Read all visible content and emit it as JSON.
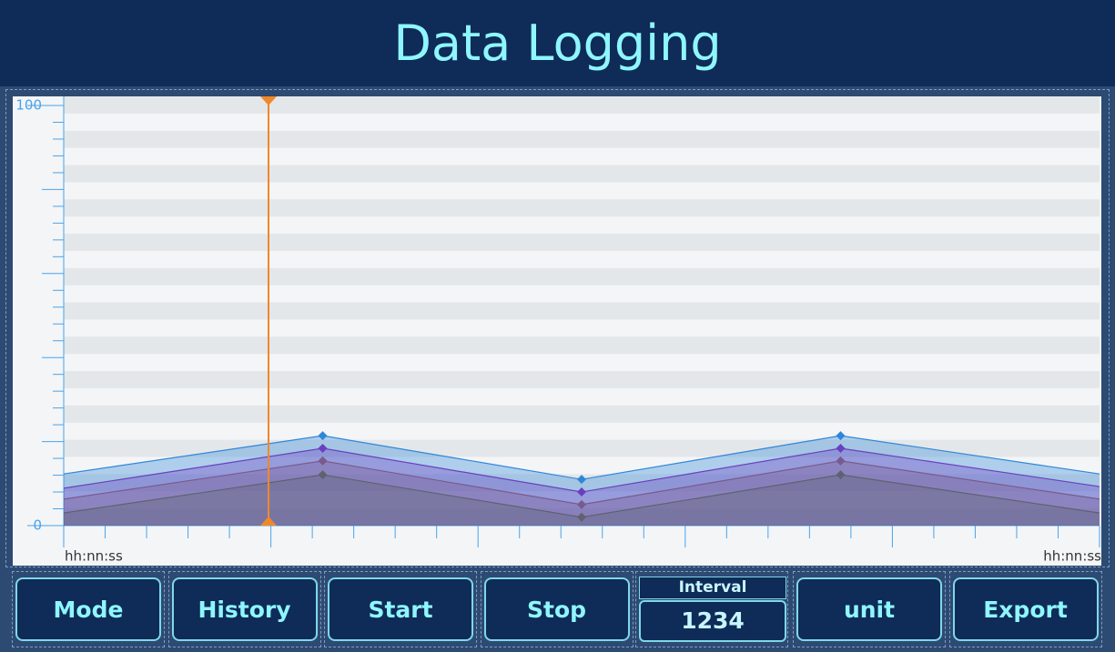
{
  "header": {
    "title": "Data Logging"
  },
  "chart_data": {
    "type": "area",
    "categories": [
      null,
      null,
      null,
      null,
      null
    ],
    "x_labels": [
      "hh:nn:ss",
      "hh:nn:ss"
    ],
    "series": [
      {
        "color": "#2f86d8",
        "values": [
          12.3,
          21.4,
          11.0,
          21.4,
          12.3
        ]
      },
      {
        "color": "#6a3fc0",
        "values": [
          8.9,
          18.4,
          8.0,
          18.4,
          9.3
        ]
      },
      {
        "color": "#7a5a8c",
        "values": [
          6.3,
          15.4,
          5.0,
          15.4,
          6.3
        ]
      },
      {
        "color": "#5f6170",
        "values": [
          3.0,
          12.1,
          2.0,
          12.1,
          3.0
        ]
      }
    ],
    "ylim": [
      0,
      100
    ],
    "yticks": [
      0,
      100
    ]
  },
  "buttons": [
    "Mode",
    "History",
    "Start",
    "Stop"
  ],
  "interval": {
    "label": "Interval",
    "value": "1234"
  },
  "buttons_right": [
    "unit",
    "Export"
  ]
}
